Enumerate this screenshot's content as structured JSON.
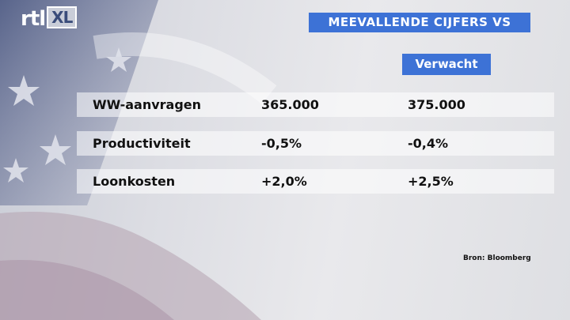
{
  "logo": {
    "text": "rtl",
    "badge": "XL"
  },
  "header": {
    "title": "MEEVALLENDE CIJFERS VS"
  },
  "table": {
    "expected_header": "Verwacht",
    "rows": [
      [
        "WW-aanvragen",
        "365.000",
        "375.000"
      ],
      [
        "Productiviteit",
        "-0,5%",
        "-0,4%"
      ],
      [
        "Loonkosten",
        "+2,0%",
        "+2,5%"
      ]
    ]
  },
  "source": "Bron: Bloomberg"
}
